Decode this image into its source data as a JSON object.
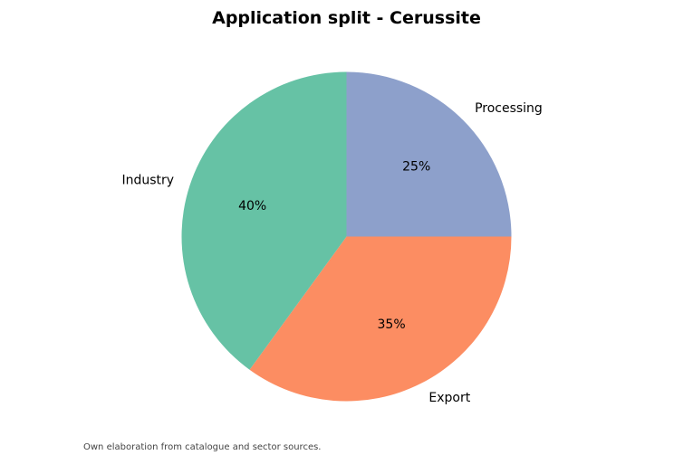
{
  "chart_data": {
    "type": "pie",
    "title": "Application split - Cerussite",
    "slices": [
      {
        "label": "Processing",
        "value": 25,
        "pct_label": "25%",
        "color": "#8da0cb"
      },
      {
        "label": "Export",
        "value": 35,
        "pct_label": "35%",
        "color": "#fc8d62"
      },
      {
        "label": "Industry",
        "value": 40,
        "pct_label": "40%",
        "color": "#66c2a5"
      }
    ],
    "start_angle_deg": 90,
    "direction": "clockwise",
    "legend": false
  },
  "footer": {
    "source_note": "Own elaboration from catalogue and sector sources."
  }
}
